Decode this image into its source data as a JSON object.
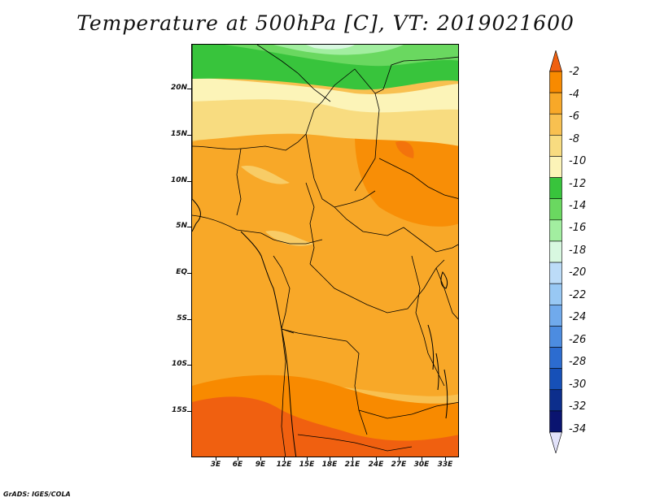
{
  "title": "Temperature at 500hPa [C], VT: 2019021600",
  "credit": "GrADS: IGES/COLA",
  "axes": {
    "lat_labels": [
      "20N",
      "15N",
      "10N",
      "5N",
      "EQ",
      "5S",
      "10S",
      "15S"
    ],
    "lon_labels": [
      "3E",
      "6E",
      "9E",
      "12E",
      "15E",
      "18E",
      "21E",
      "24E",
      "27E",
      "30E",
      "33E"
    ]
  },
  "colorbar": {
    "labels": [
      "-2",
      "-4",
      "-6",
      "-8",
      "-10",
      "-12",
      "-14",
      "-16",
      "-18",
      "-20",
      "-22",
      "-24",
      "-26",
      "-28",
      "-30",
      "-32",
      "-34"
    ],
    "colors": [
      "#f06010",
      "#f88a00",
      "#f8a828",
      "#f8c050",
      "#f8dc80",
      "#fcf4b8",
      "#38c43c",
      "#6ad860",
      "#a2eea0",
      "#d8f8e0",
      "#bcdcf8",
      "#98c8f4",
      "#70aaec",
      "#4c8ce0",
      "#2c6cd0",
      "#1650b8",
      "#0c2e8c",
      "#0a1470",
      "#e2e2fa"
    ]
  },
  "map": {
    "bands": [
      {
        "name": "cold-north",
        "color": "#38c43c"
      },
      {
        "name": "light-green",
        "color": "#a2eea0"
      },
      {
        "name": "pale-yellow",
        "color": "#fcf4b8"
      },
      {
        "name": "yellow",
        "color": "#f8dc80"
      },
      {
        "name": "light-orange",
        "color": "#f8c050"
      },
      {
        "name": "orange",
        "color": "#f8a828"
      },
      {
        "name": "deep-orange",
        "color": "#f88a00"
      },
      {
        "name": "red-orange",
        "color": "#f06010"
      }
    ]
  }
}
